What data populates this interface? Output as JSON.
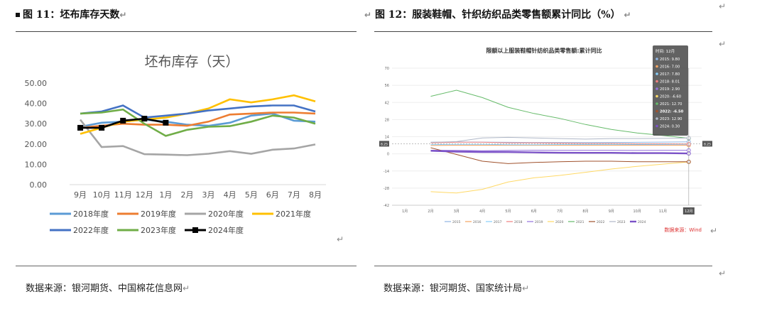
{
  "left": {
    "fig_title": "图 11：坯布库存天数",
    "source": "数据来源：银河期货、中国棉花信息网",
    "chart_data": {
      "type": "line",
      "title": "坯布库存（天）",
      "categories": [
        "9月",
        "10月",
        "11月",
        "12月",
        "1月",
        "2月",
        "3月",
        "4月",
        "5月",
        "6月",
        "7月",
        "8月"
      ],
      "ylim": [
        0,
        50
      ],
      "yticks": [
        "0.00",
        "10.00",
        "20.00",
        "30.00",
        "40.00",
        "50.00"
      ],
      "series": [
        {
          "name": "2018年度",
          "color": "#5b9bd5",
          "values": [
            28.5,
            30.5,
            31,
            32,
            31,
            29.5,
            29,
            30.5,
            34,
            35,
            31.5,
            31
          ]
        },
        {
          "name": "2019年度",
          "color": "#ed7d31",
          "values": [
            28,
            29,
            30,
            29.5,
            29.5,
            29,
            31,
            34.5,
            35,
            35.5,
            35.5,
            35
          ]
        },
        {
          "name": "2020年度",
          "color": "#a5a5a5",
          "values": [
            32,
            18.5,
            19,
            15,
            14.8,
            14.5,
            15.2,
            16.5,
            15.2,
            17.2,
            17.8,
            19.8
          ]
        },
        {
          "name": "2021年度",
          "color": "#ffc000",
          "values": [
            25,
            28,
            31,
            32,
            33,
            35,
            37.5,
            42,
            40.5,
            42,
            44,
            41
          ]
        },
        {
          "name": "2022年度",
          "color": "#4472c4",
          "values": [
            35,
            36,
            39,
            33,
            34,
            35,
            36.5,
            37.5,
            38.5,
            39,
            39,
            36
          ]
        },
        {
          "name": "2023年度",
          "color": "#70ad47",
          "values": [
            35,
            35.5,
            37,
            30,
            24,
            27,
            28.5,
            28.8,
            31,
            34,
            33,
            30
          ]
        },
        {
          "name": "2024年度",
          "color": "#000000",
          "values": [
            28,
            28,
            31.5,
            32.5,
            30.5,
            null,
            null,
            null,
            null,
            null,
            null,
            null
          ]
        }
      ]
    }
  },
  "right": {
    "fig_title": "图 12：服装鞋帽、针织纺织品类零售额累计同比（%）",
    "source": "数据来源：银河期货、国家统计局",
    "chart_data": {
      "type": "line",
      "title": "限额以上服装鞋帽针纺织品类零售额:累计同比",
      "categories": [
        "1月",
        "2月",
        "3月",
        "4月",
        "5月",
        "6月",
        "7月",
        "8月",
        "9月",
        "10月",
        "11月",
        "12月"
      ],
      "ylim": [
        -42,
        70
      ],
      "yticks": [
        "70",
        "56",
        "42",
        "28",
        "14",
        "0",
        "-14",
        "-28",
        "-42"
      ],
      "series": [
        {
          "name": "2015",
          "color": "#8fb4e3",
          "values": [
            null,
            9.5,
            9.7,
            9.6,
            9.4,
            9.3,
            9.2,
            9.2,
            9.3,
            9.4,
            9.6,
            9.8
          ]
        },
        {
          "name": "2016",
          "color": "#f4a460",
          "values": [
            null,
            6.8,
            7.0,
            7.0,
            7.0,
            7.0,
            7.0,
            7.0,
            7.0,
            7.0,
            7.0,
            7.0
          ]
        },
        {
          "name": "2017",
          "color": "#87cefa",
          "values": [
            null,
            7.5,
            7.8,
            7.8,
            7.5,
            7.4,
            7.6,
            7.6,
            7.7,
            7.6,
            7.7,
            7.8
          ]
        },
        {
          "name": "2018",
          "color": "#f08080",
          "values": [
            null,
            9.0,
            9.5,
            9.5,
            9.0,
            9.0,
            8.8,
            8.5,
            8.5,
            8.2,
            8.2,
            8.0
          ]
        },
        {
          "name": "2019",
          "color": "#9370db",
          "values": [
            null,
            3.0,
            2.8,
            2.5,
            2.8,
            3.0,
            2.9,
            2.9,
            2.9,
            2.8,
            2.9,
            2.9
          ]
        },
        {
          "name": "2020",
          "color": "#ffd966",
          "values": [
            null,
            -30.9,
            -32.0,
            -29.0,
            -23.0,
            -19.6,
            -17.6,
            -15.1,
            -12.4,
            -10.2,
            -8.4,
            -6.6
          ]
        },
        {
          "name": "2021",
          "color": "#66bb6a",
          "values": [
            null,
            47.0,
            52.0,
            46.0,
            38.0,
            33.0,
            29.0,
            24.0,
            20.0,
            17.0,
            15.0,
            12.7
          ]
        },
        {
          "name": "2022",
          "color": "#a0522d",
          "values": [
            null,
            5.0,
            -0.5,
            -6.0,
            -8.0,
            -7.0,
            -6.5,
            -6.0,
            -6.0,
            -6.5,
            -6.5,
            -6.5
          ]
        },
        {
          "name": "2023",
          "color": "#b0b8c8",
          "values": [
            null,
            9.4,
            10.0,
            13.0,
            13.5,
            13.0,
            12.5,
            12.0,
            12.5,
            12.5,
            12.6,
            12.9
          ]
        },
        {
          "name": "2024",
          "color": "#7b52c7",
          "values": [
            null,
            2.5,
            1.8,
            1.5,
            1.5,
            1.2,
            0.9,
            0.8,
            0.8,
            0.6,
            0.6,
            0.3
          ]
        }
      ],
      "tooltip": {
        "header": "时间: 12月",
        "rows": [
          {
            "label": "2015: 9.80",
            "color": "#8fb4e3",
            "bold": false
          },
          {
            "label": "2016: 7.00",
            "color": "#f4a460",
            "bold": false
          },
          {
            "label": "2017: 7.80",
            "color": "#87cefa",
            "bold": false
          },
          {
            "label": "2018: 8.01",
            "color": "#f08080",
            "bold": false
          },
          {
            "label": "2019: 2.90",
            "color": "#9370db",
            "bold": false
          },
          {
            "label": "2020: -6.60",
            "color": "#ffd966",
            "bold": false
          },
          {
            "label": "2021: 12.70",
            "color": "#66bb6a",
            "bold": false
          },
          {
            "label": "2022: -6.50",
            "color": "#a0522d",
            "bold": true
          },
          {
            "label": "2023: 12.90",
            "color": "#b0b8c8",
            "bold": false
          },
          {
            "label": "2024: 0.30",
            "color": "#7b52c7",
            "bold": false
          }
        ]
      },
      "y_marker_left": "8.25",
      "y_marker_right": "8.25",
      "x_marker": "12月",
      "source_note": "数据来源：Wind"
    }
  }
}
